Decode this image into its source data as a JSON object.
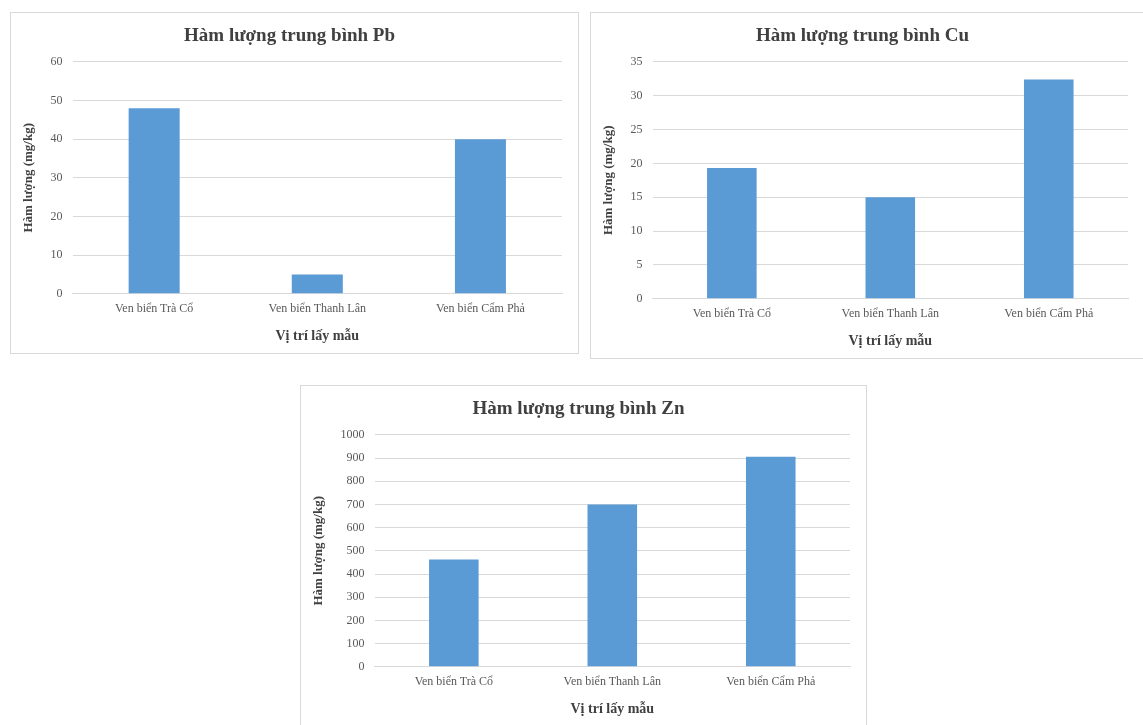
{
  "chart_data": [
    {
      "type": "bar",
      "title": "Hàm lượng trung bình Pb",
      "xlabel": "Vị trí lấy mẫu",
      "ylabel": "Hàm lượng (mg/kg)",
      "categories": [
        "Ven biển Trà Cổ",
        "Ven biển Thanh Lân",
        "Ven biển Cẩm Phả"
      ],
      "values": [
        48,
        5,
        40
      ],
      "color": "#5b9bd5",
      "ylim": [
        0,
        60
      ],
      "yticks": [
        0,
        10,
        20,
        30,
        40,
        50,
        60
      ],
      "grid": "y"
    },
    {
      "type": "bar",
      "title": "Hàm lượng trung bình Cu",
      "xlabel": "Vị trí lấy mẫu",
      "ylabel": "Hàm lượng (mg/kg)",
      "categories": [
        "Ven biển Trà Cổ",
        "Ven biển Thanh Lân",
        "Ven biển Cẩm Phả"
      ],
      "values": [
        19.3,
        15,
        32.4
      ],
      "color": "#5b9bd5",
      "ylim": [
        0,
        35
      ],
      "yticks": [
        0,
        5,
        10,
        15,
        20,
        25,
        30,
        35
      ],
      "grid": "y"
    },
    {
      "type": "bar",
      "title": "Hàm lượng trung bình Zn",
      "xlabel": "Vị trí lấy mẫu",
      "ylabel": "Hàm lượng (mg/kg)",
      "categories": [
        "Ven biển Trà Cổ",
        "Ven biển Thanh Lân",
        "Ven biển Cẩm Phả"
      ],
      "values": [
        463,
        700,
        905
      ],
      "color": "#5b9bd5",
      "ylim": [
        0,
        1000
      ],
      "yticks": [
        0,
        100,
        200,
        300,
        400,
        500,
        600,
        700,
        800,
        900,
        1000
      ],
      "grid": "y"
    }
  ]
}
